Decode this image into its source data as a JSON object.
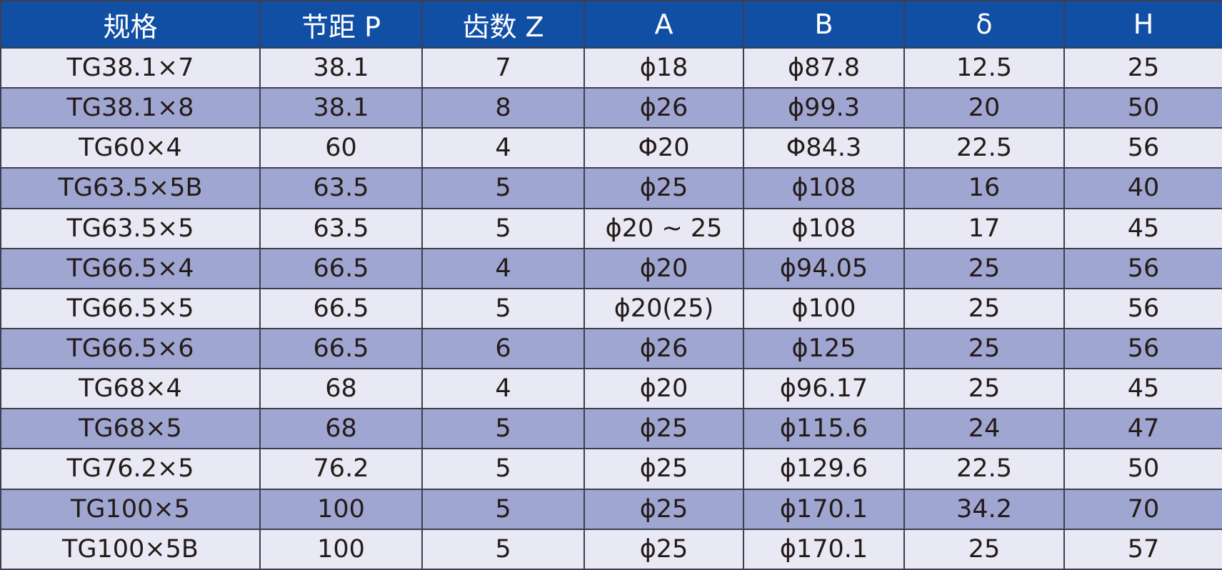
{
  "chart_data": {
    "type": "table",
    "columns": [
      "规格",
      "节距 P",
      "齿数 Z",
      "A",
      "B",
      "δ",
      "H"
    ],
    "rows": [
      [
        "TG38.1×7",
        "38.1",
        "7",
        "ϕ18",
        "ϕ87.8",
        "12.5",
        "25"
      ],
      [
        "TG38.1×8",
        "38.1",
        "8",
        "ϕ26",
        "ϕ99.3",
        "20",
        "50"
      ],
      [
        "TG60×4",
        "60",
        "4",
        "Φ20",
        "Φ84.3",
        "22.5",
        "56"
      ],
      [
        "TG63.5×5B",
        "63.5",
        "5",
        "ϕ25",
        "ϕ108",
        "16",
        "40"
      ],
      [
        "TG63.5×5",
        "63.5",
        "5",
        "ϕ20 ∼ 25",
        "ϕ108",
        "17",
        "45"
      ],
      [
        "TG66.5×4",
        "66.5",
        "4",
        "ϕ20",
        "ϕ94.05",
        "25",
        "56"
      ],
      [
        "TG66.5×5",
        "66.5",
        "5",
        "ϕ20(25)",
        "ϕ100",
        "25",
        "56"
      ],
      [
        "TG66.5×6",
        "66.5",
        "6",
        "ϕ26",
        "ϕ125",
        "25",
        "56"
      ],
      [
        "TG68×4",
        "68",
        "4",
        "ϕ20",
        "ϕ96.17",
        "25",
        "45"
      ],
      [
        "TG68×5",
        "68",
        "5",
        "ϕ25",
        "ϕ115.6",
        "24",
        "47"
      ],
      [
        "TG76.2×5",
        "76.2",
        "5",
        "ϕ25",
        "ϕ129.6",
        "22.5",
        "50"
      ],
      [
        "TG100×5",
        "100",
        "5",
        "ϕ25",
        "ϕ170.1",
        "34.2",
        "70"
      ],
      [
        "TG100×5B",
        "100",
        "5",
        "ϕ25",
        "ϕ170.1",
        "25",
        "57"
      ]
    ],
    "title": "",
    "legend_position": "none",
    "grid": true
  },
  "colors": {
    "header_bg": "#114fa4",
    "header_text": "#ffffff",
    "row_light": "#e8e9f4",
    "row_dark": "#9fa6d1",
    "grid_line": "#3d3f4e",
    "cell_text": "#241a18"
  }
}
